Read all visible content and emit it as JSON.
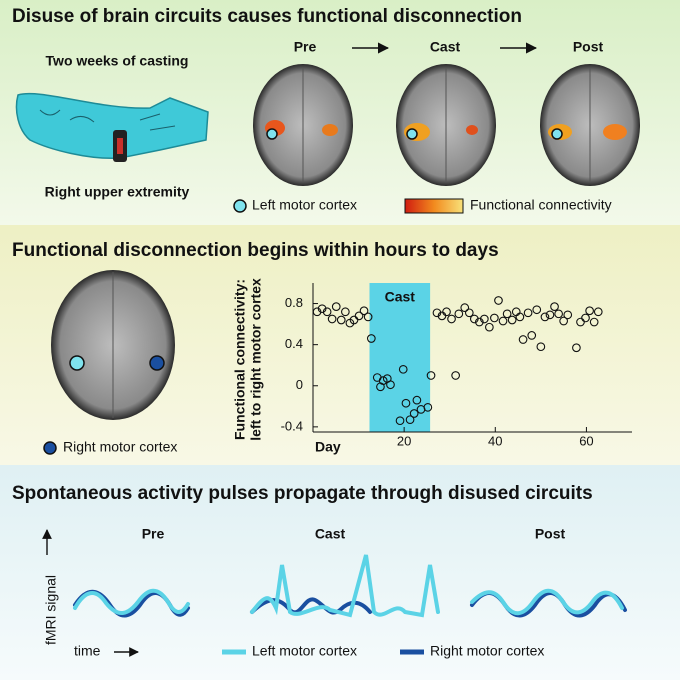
{
  "panel1": {
    "title": "Disuse of brain circuits causes functional disconnection",
    "cast_label": "Two weeks of casting",
    "limb_label": "Right upper extremity",
    "stages": [
      "Pre",
      "Cast",
      "Post"
    ],
    "legend": {
      "region": "Left motor cortex",
      "connectivity": "Functional connectivity"
    }
  },
  "panel2": {
    "title": "Functional disconnection begins within hours to days",
    "brain_legend": "Right motor cortex",
    "chart": {
      "type": "scatter",
      "y_label": [
        "Functional connectivity:",
        "left to right motor cortex"
      ],
      "x_label": "Day",
      "shade": {
        "label": "Cast",
        "range": [
          12.4,
          25.7
        ],
        "color": "#5bd3e6"
      },
      "x": [
        0.9,
        2.0,
        3.1,
        4.2,
        5.1,
        6.2,
        7.1,
        8.1,
        9.0,
        10.1,
        11.2,
        12.1,
        12.8,
        14.1,
        14.8,
        15.4,
        16.3,
        17.0,
        19.1,
        19.8,
        20.4,
        21.3,
        22.2,
        22.8,
        23.7,
        25.2,
        25.9,
        27.2,
        28.3,
        29.3,
        30.4,
        31.3,
        32.0,
        33.3,
        34.3,
        35.4,
        36.5,
        37.6,
        38.7,
        39.8,
        40.7,
        41.7,
        42.6,
        43.7,
        44.6,
        45.4,
        46.1,
        47.2,
        48.0,
        49.1,
        50.0,
        50.9,
        52.0,
        53.0,
        53.9,
        55.0,
        55.9,
        57.8,
        58.7,
        59.8,
        60.7,
        61.7,
        62.6
      ],
      "values": [
        0.72,
        0.75,
        0.72,
        0.65,
        0.77,
        0.64,
        0.72,
        0.61,
        0.64,
        0.68,
        0.73,
        0.67,
        0.46,
        0.08,
        -0.01,
        0.05,
        0.07,
        0.01,
        -0.34,
        0.16,
        -0.17,
        -0.33,
        -0.27,
        -0.14,
        -0.23,
        -0.21,
        0.1,
        0.71,
        0.68,
        0.72,
        0.65,
        0.1,
        0.7,
        0.76,
        0.71,
        0.65,
        0.62,
        0.65,
        0.57,
        0.66,
        0.83,
        0.63,
        0.7,
        0.64,
        0.72,
        0.67,
        0.45,
        0.71,
        0.49,
        0.74,
        0.38,
        0.67,
        0.69,
        0.77,
        0.7,
        0.63,
        0.69,
        0.37,
        0.62,
        0.66,
        0.73,
        0.62,
        0.72
      ],
      "xlim": [
        0,
        70
      ],
      "ylim": [
        -0.45,
        1.0
      ],
      "xticks": [
        20,
        40,
        60
      ],
      "yticks": [
        -0.4,
        0,
        0.4,
        0.8
      ]
    }
  },
  "panel3": {
    "title": "Spontaneous activity pulses propagate through disused circuits",
    "y_label": "fMRI signal",
    "x_label": "time",
    "stages": [
      "Pre",
      "Cast",
      "Post"
    ],
    "legend": [
      "Left motor cortex",
      "Right motor cortex"
    ]
  }
}
